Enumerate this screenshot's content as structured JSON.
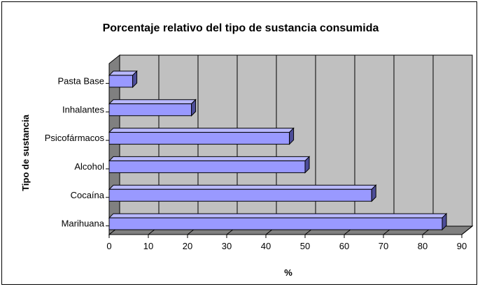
{
  "chart_data": {
    "type": "bar",
    "orientation": "horizontal",
    "title": "Porcentaje relativo del tipo de sustancia consumida",
    "xlabel": "%",
    "ylabel": "Tipo de sustancia",
    "categories": [
      "Marihuana",
      "Cocaína",
      "Alcohol",
      "Psicofármacos",
      "Inhalantes",
      "Pasta Base"
    ],
    "values": [
      85,
      67,
      50,
      46,
      21,
      6
    ],
    "xlim": [
      0,
      90
    ],
    "xticks": [
      "0",
      "10",
      "20",
      "30",
      "40",
      "50",
      "60",
      "70",
      "80",
      "90"
    ],
    "grid": true,
    "legend": "none",
    "colors": {
      "bar": "#9999ff",
      "bar_top": "#b8b8ff",
      "bar_side": "#4d4d99",
      "plot_bg": "#c0c0c0",
      "floor": "#808080"
    }
  }
}
